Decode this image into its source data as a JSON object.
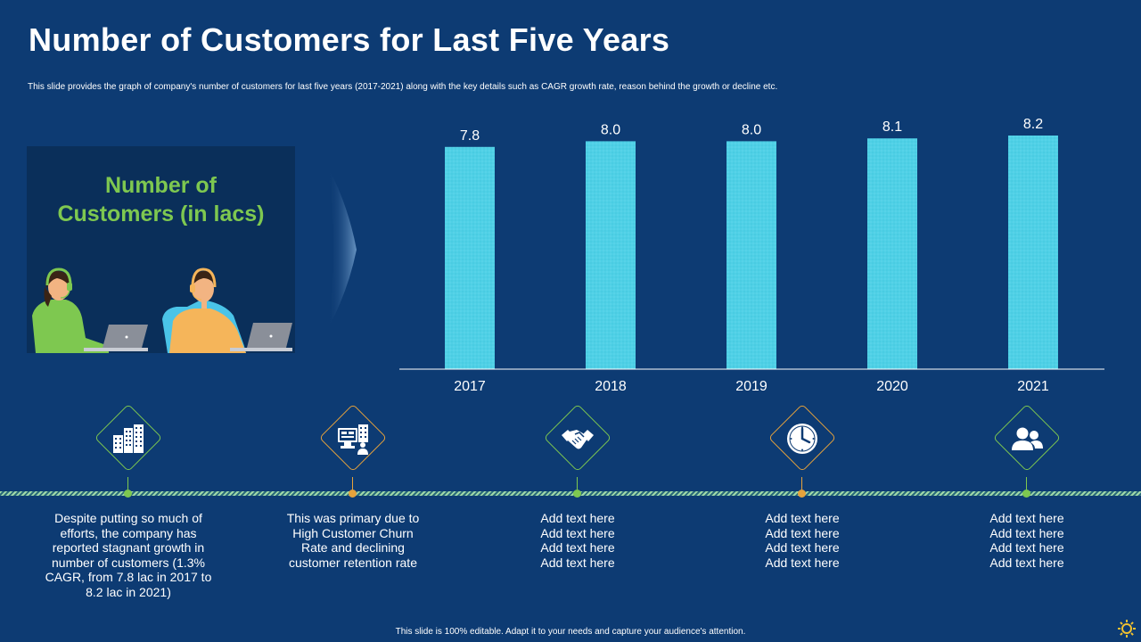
{
  "slide": {
    "title": "Number of Customers for Last Five Years",
    "subtitle": "This slide provides the graph of company's number  of customers for last five years (2017-2021) along with the key details such as CAGR growth rate, reason behind the growth or decline etc.",
    "footer": "This slide is 100% editable.  Adapt it to your needs and capture your audience's attention."
  },
  "illustration": {
    "title_line1": "Number of",
    "title_line2": "Customers (in lacs)"
  },
  "chart_data": {
    "type": "bar",
    "title": "Number of Customers (in lacs)",
    "categories": [
      "2017",
      "2018",
      "2019",
      "2020",
      "2021"
    ],
    "values": [
      7.8,
      8.0,
      8.0,
      8.1,
      8.2
    ],
    "value_labels": [
      "7.8",
      "8.0",
      "8.0",
      "8.1",
      "8.2"
    ],
    "xlabel": "",
    "ylabel": "",
    "ylim": [
      0,
      8.2
    ],
    "grid": false,
    "bar_color": "#4fd0e6"
  },
  "milestones": [
    {
      "icon": "buildings-icon",
      "accent": "#7ec850",
      "lines": [
        "Despite putting so much of",
        "efforts, the company has",
        "reported stagnant growth in",
        "number of customers (1.3%",
        "CAGR, from 7.8 lac in 2017 to",
        "8.2 lac in 2021)"
      ]
    },
    {
      "icon": "computer-office-icon",
      "accent": "#e6a23c",
      "lines": [
        "This was primary due to",
        "High Customer Churn",
        "Rate and declining",
        "customer retention rate"
      ]
    },
    {
      "icon": "handshake-icon",
      "accent": "#7ec850",
      "lines": [
        "Add text here",
        "Add text here",
        "Add text here",
        "Add text here"
      ]
    },
    {
      "icon": "clock-icon",
      "accent": "#e6a23c",
      "lines": [
        "Add text here",
        "Add text here",
        "Add text here",
        "Add text here"
      ]
    },
    {
      "icon": "users-icon",
      "accent": "#7ec850",
      "lines": [
        "Add text here",
        "Add text here",
        "Add text here",
        "Add text here"
      ]
    }
  ],
  "colors": {
    "background": "#0d3b73",
    "accent_green": "#7ec850",
    "accent_orange": "#e6a23c",
    "bar": "#4fd0e6"
  }
}
